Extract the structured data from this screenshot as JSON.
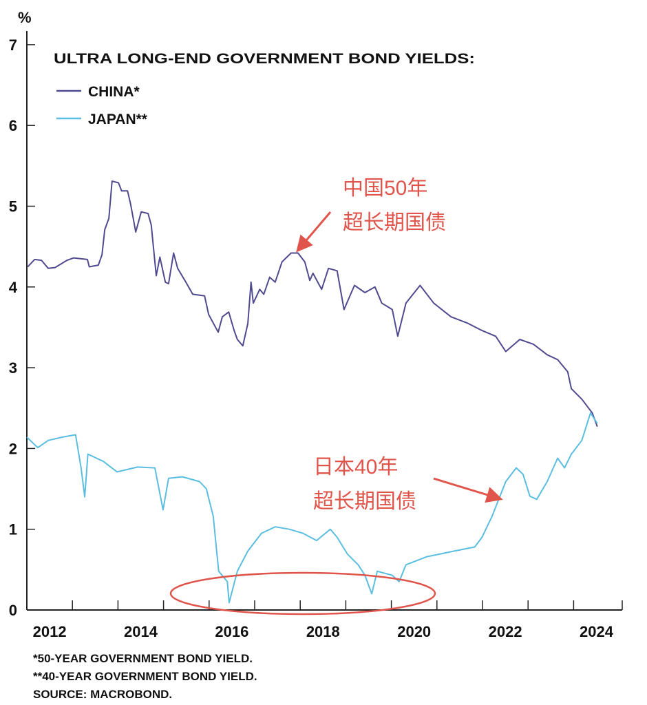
{
  "chart_data": {
    "type": "line",
    "title": "ULTRA LONG-END GOVERNMENT BOND YIELDS:",
    "ylabel": "%",
    "xlabel": "",
    "ylim": [
      0,
      7
    ],
    "xlim": [
      2012,
      2025.1
    ],
    "y_ticks": [
      "0",
      "1",
      "2",
      "3",
      "4",
      "5",
      "6",
      "7"
    ],
    "x_tick_labels": [
      "2012",
      "2014",
      "2016",
      "2018",
      "2020",
      "2022",
      "2024"
    ],
    "grid": false,
    "legend_position": "top-left",
    "series": [
      {
        "name": "CHINA*",
        "color": "#4f4a8f",
        "points": [
          [
            2012.02,
            4.25
          ],
          [
            2012.17,
            4.34
          ],
          [
            2012.32,
            4.33
          ],
          [
            2012.47,
            4.23
          ],
          [
            2012.62,
            4.24
          ],
          [
            2012.88,
            4.33
          ],
          [
            2013.03,
            4.36
          ],
          [
            2013.33,
            4.34
          ],
          [
            2013.37,
            4.25
          ],
          [
            2013.57,
            4.27
          ],
          [
            2013.65,
            4.4
          ],
          [
            2013.71,
            4.71
          ],
          [
            2013.8,
            4.85
          ],
          [
            2013.87,
            5.31
          ],
          [
            2014.01,
            5.29
          ],
          [
            2014.08,
            5.19
          ],
          [
            2014.21,
            5.19
          ],
          [
            2014.28,
            5.02
          ],
          [
            2014.39,
            4.68
          ],
          [
            2014.51,
            4.93
          ],
          [
            2014.66,
            4.91
          ],
          [
            2014.73,
            4.77
          ],
          [
            2014.84,
            4.14
          ],
          [
            2014.92,
            4.37
          ],
          [
            2015.04,
            4.06
          ],
          [
            2015.11,
            4.04
          ],
          [
            2015.22,
            4.42
          ],
          [
            2015.31,
            4.23
          ],
          [
            2015.49,
            4.06
          ],
          [
            2015.64,
            3.91
          ],
          [
            2015.9,
            3.89
          ],
          [
            2015.99,
            3.66
          ],
          [
            2016.2,
            3.44
          ],
          [
            2016.29,
            3.63
          ],
          [
            2016.43,
            3.69
          ],
          [
            2016.55,
            3.46
          ],
          [
            2016.62,
            3.35
          ],
          [
            2016.74,
            3.27
          ],
          [
            2016.85,
            3.55
          ],
          [
            2016.92,
            4.06
          ],
          [
            2016.97,
            3.8
          ],
          [
            2017.11,
            3.97
          ],
          [
            2017.2,
            3.91
          ],
          [
            2017.33,
            4.12
          ],
          [
            2017.45,
            4.06
          ],
          [
            2017.6,
            4.31
          ],
          [
            2017.8,
            4.42
          ],
          [
            2017.95,
            4.42
          ],
          [
            2018.1,
            4.31
          ],
          [
            2018.21,
            4.08
          ],
          [
            2018.28,
            4.17
          ],
          [
            2018.47,
            3.97
          ],
          [
            2018.62,
            4.23
          ],
          [
            2018.81,
            4.2
          ],
          [
            2018.96,
            3.72
          ],
          [
            2019.19,
            4.02
          ],
          [
            2019.42,
            3.93
          ],
          [
            2019.64,
            4.0
          ],
          [
            2019.79,
            3.8
          ],
          [
            2020.02,
            3.72
          ],
          [
            2020.14,
            3.39
          ],
          [
            2020.32,
            3.8
          ],
          [
            2020.63,
            4.02
          ],
          [
            2020.93,
            3.8
          ],
          [
            2021.31,
            3.63
          ],
          [
            2021.68,
            3.55
          ],
          [
            2021.99,
            3.46
          ],
          [
            2022.29,
            3.39
          ],
          [
            2022.51,
            3.2
          ],
          [
            2022.82,
            3.35
          ],
          [
            2023.12,
            3.29
          ],
          [
            2023.42,
            3.16
          ],
          [
            2023.65,
            3.1
          ],
          [
            2023.87,
            2.95
          ],
          [
            2023.95,
            2.74
          ],
          [
            2024.18,
            2.61
          ],
          [
            2024.41,
            2.44
          ],
          [
            2024.52,
            2.27
          ]
        ]
      },
      {
        "name": "JAPAN**",
        "color": "#5bbde0",
        "points": [
          [
            2012.0,
            2.14
          ],
          [
            2012.24,
            2.01
          ],
          [
            2012.47,
            2.1
          ],
          [
            2012.77,
            2.14
          ],
          [
            2013.07,
            2.17
          ],
          [
            2013.19,
            1.76
          ],
          [
            2013.27,
            1.4
          ],
          [
            2013.34,
            1.93
          ],
          [
            2013.68,
            1.84
          ],
          [
            2013.98,
            1.71
          ],
          [
            2014.43,
            1.77
          ],
          [
            2014.81,
            1.76
          ],
          [
            2014.99,
            1.24
          ],
          [
            2015.11,
            1.63
          ],
          [
            2015.41,
            1.65
          ],
          [
            2015.79,
            1.59
          ],
          [
            2015.94,
            1.5
          ],
          [
            2016.09,
            1.16
          ],
          [
            2016.21,
            0.48
          ],
          [
            2016.4,
            0.35
          ],
          [
            2016.44,
            0.09
          ],
          [
            2016.62,
            0.48
          ],
          [
            2016.85,
            0.73
          ],
          [
            2017.15,
            0.95
          ],
          [
            2017.45,
            1.03
          ],
          [
            2017.76,
            1.0
          ],
          [
            2018.06,
            0.95
          ],
          [
            2018.36,
            0.86
          ],
          [
            2018.66,
            1.0
          ],
          [
            2018.81,
            0.9
          ],
          [
            2019.04,
            0.69
          ],
          [
            2019.27,
            0.56
          ],
          [
            2019.42,
            0.43
          ],
          [
            2019.57,
            0.2
          ],
          [
            2019.69,
            0.48
          ],
          [
            2020.02,
            0.43
          ],
          [
            2020.17,
            0.35
          ],
          [
            2020.32,
            0.56
          ],
          [
            2020.78,
            0.66
          ],
          [
            2021.38,
            0.73
          ],
          [
            2021.83,
            0.78
          ],
          [
            2021.99,
            0.9
          ],
          [
            2022.21,
            1.16
          ],
          [
            2022.51,
            1.59
          ],
          [
            2022.74,
            1.76
          ],
          [
            2022.89,
            1.68
          ],
          [
            2023.04,
            1.41
          ],
          [
            2023.19,
            1.37
          ],
          [
            2023.42,
            1.59
          ],
          [
            2023.65,
            1.88
          ],
          [
            2023.8,
            1.76
          ],
          [
            2023.95,
            1.93
          ],
          [
            2024.18,
            2.1
          ],
          [
            2024.37,
            2.44
          ],
          [
            2024.52,
            2.31
          ]
        ]
      }
    ],
    "annotations": [
      {
        "lines": [
          "中国50年",
          "超长期国债"
        ],
        "color": "#e0554b"
      },
      {
        "lines": [
          "日本40年",
          "超长期国债"
        ],
        "color": "#e0554b"
      }
    ],
    "footnotes": [
      "*50-YEAR GOVERNMENT BOND YIELD.",
      "**40-YEAR GOVERNMENT BOND YIELD.",
      "SOURCE: MACROBOND."
    ]
  }
}
